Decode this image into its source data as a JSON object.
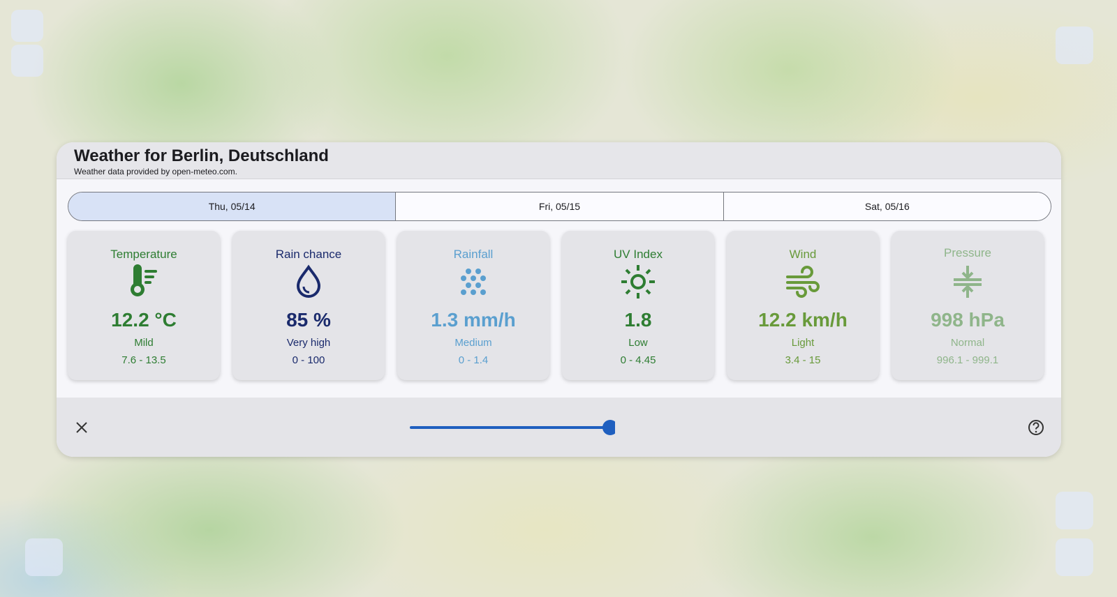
{
  "header": {
    "title": "Weather for Berlin, Deutschland",
    "subtitle": "Weather data provided by open-meteo.com."
  },
  "tabs": [
    "Thu, 05/14",
    "Fri, 05/15",
    "Sat, 05/16"
  ],
  "cards": [
    {
      "title": "Temperature",
      "value": "12.2 °C",
      "level": "Mild",
      "range": "7.6 - 13.5"
    },
    {
      "title": "Rain chance",
      "value": "85 %",
      "level": "Very high",
      "range": "0 - 100"
    },
    {
      "title": "Rainfall",
      "value": "1.3 mm/h",
      "level": "Medium",
      "range": "0 - 1.4"
    },
    {
      "title": "UV Index",
      "value": "1.8",
      "level": "Low",
      "range": "0 - 4.45"
    },
    {
      "title": "Wind",
      "value": "12.2 km/h",
      "level": "Light",
      "range": "3.4 - 15"
    },
    {
      "title": "Pressure",
      "value": "998 hPa",
      "level": "Normal",
      "range": "996.1 - 999.1"
    }
  ]
}
